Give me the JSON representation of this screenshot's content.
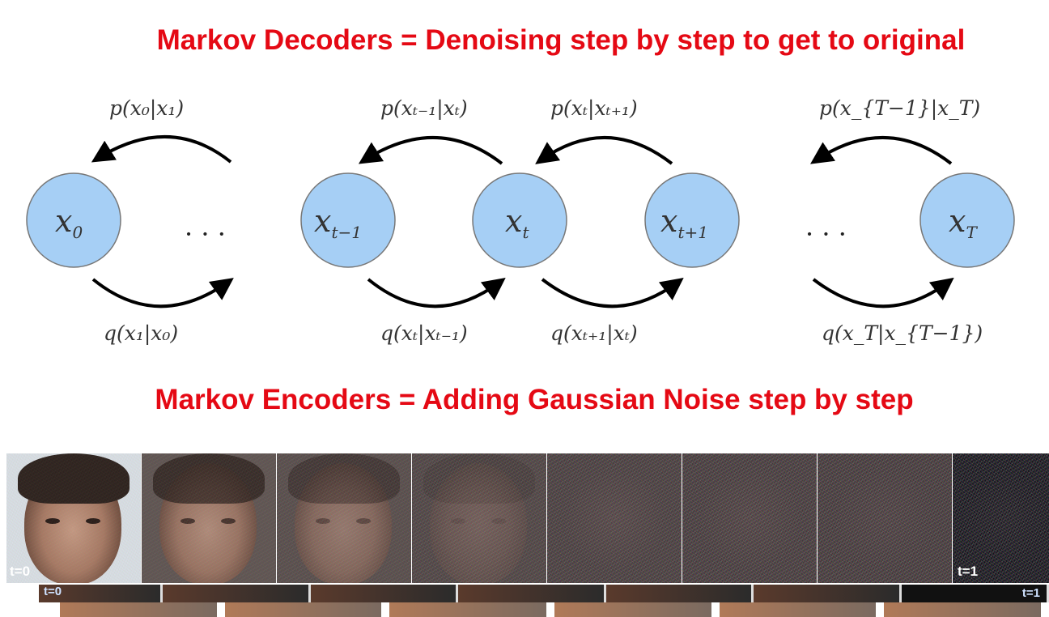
{
  "titles": {
    "decoders": "Markov Decoders = Denoising step by step to get to original",
    "encoders": "Markov Encoders = Adding Gaussian Noise step by step"
  },
  "nodes": [
    {
      "base": "x",
      "sub": "0"
    },
    {
      "base": "x",
      "sub": "t−1"
    },
    {
      "base": "x",
      "sub": "t"
    },
    {
      "base": "x",
      "sub": "t+1"
    },
    {
      "base": "x",
      "sub": "T"
    }
  ],
  "ellipsis": "· · ·",
  "reverse_labels": [
    "p(x₀|x₁)",
    "p(xₜ₋₁|xₜ)",
    "p(xₜ|xₜ₊₁)",
    "p(x_{T−1}|x_T)"
  ],
  "forward_labels": [
    "q(x₁|x₀)",
    "q(xₜ|xₜ₋₁)",
    "q(xₜ₊₁|xₜ)",
    "q(x_T|x_{T−1})"
  ],
  "strip": {
    "start_label": "t=0",
    "end_label": "t=1",
    "noise_levels": [
      0,
      0.15,
      0.35,
      0.6,
      0.8,
      0.88,
      0.94,
      1.0
    ],
    "second_row_label": "t=0",
    "second_row_end_label": "t=1"
  },
  "colors": {
    "title": "#e50914",
    "node_fill": "#a6cff5"
  }
}
